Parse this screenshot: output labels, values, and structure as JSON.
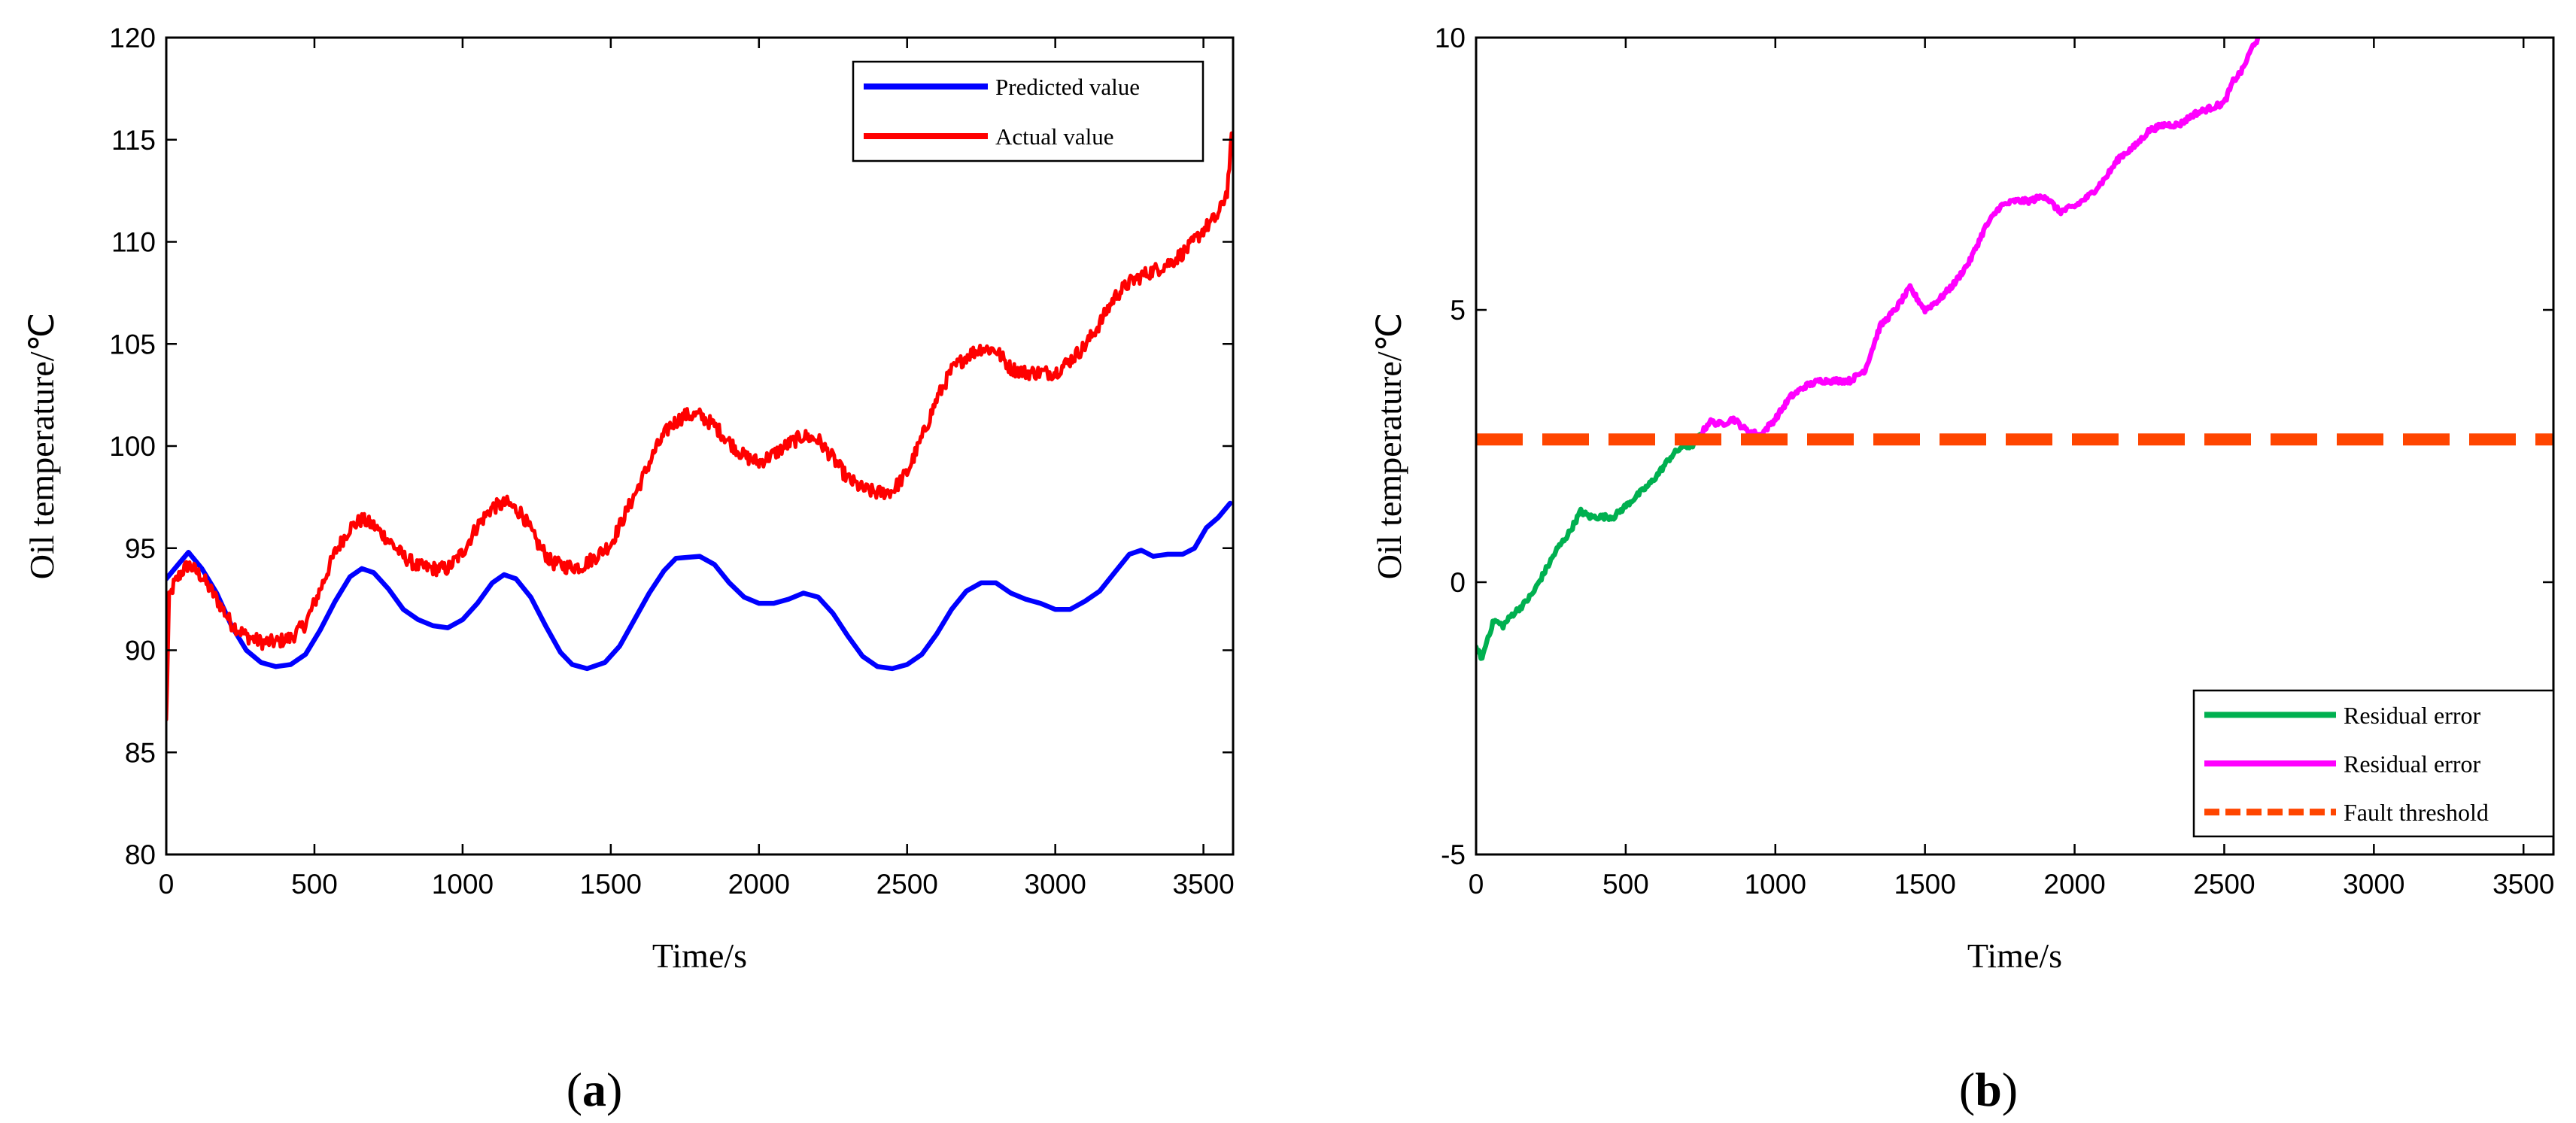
{
  "chart_data": [
    {
      "type": "line",
      "panel_label": "(a)",
      "panel_letter": "a",
      "xlabel": "Time/s",
      "ylabel": "Oil temperature/℃",
      "xlim": [
        0,
        3600
      ],
      "ylim": [
        80,
        120
      ],
      "xticks": [
        0,
        500,
        1000,
        1500,
        2000,
        2500,
        3000,
        3500
      ],
      "yticks": [
        80,
        85,
        90,
        95,
        100,
        105,
        110,
        115,
        120
      ],
      "legend_position": "top-right",
      "series": [
        {
          "name": "Predicted value",
          "color": "#0000ff",
          "noise": 0,
          "points": [
            [
              0,
              93.5
            ],
            [
              40,
              94.2
            ],
            [
              75,
              94.8
            ],
            [
              120,
              94.0
            ],
            [
              170,
              92.8
            ],
            [
              220,
              91.2
            ],
            [
              270,
              90.0
            ],
            [
              320,
              89.4
            ],
            [
              370,
              89.2
            ],
            [
              420,
              89.3
            ],
            [
              470,
              89.8
            ],
            [
              520,
              91.0
            ],
            [
              570,
              92.4
            ],
            [
              620,
              93.6
            ],
            [
              660,
              94.0
            ],
            [
              700,
              93.8
            ],
            [
              750,
              93.0
            ],
            [
              800,
              92.0
            ],
            [
              850,
              91.5
            ],
            [
              900,
              91.2
            ],
            [
              950,
              91.1
            ],
            [
              1000,
              91.5
            ],
            [
              1050,
              92.3
            ],
            [
              1100,
              93.3
            ],
            [
              1140,
              93.7
            ],
            [
              1180,
              93.5
            ],
            [
              1230,
              92.6
            ],
            [
              1280,
              91.2
            ],
            [
              1330,
              89.9
            ],
            [
              1370,
              89.3
            ],
            [
              1420,
              89.1
            ],
            [
              1480,
              89.4
            ],
            [
              1530,
              90.2
            ],
            [
              1580,
              91.5
            ],
            [
              1630,
              92.8
            ],
            [
              1680,
              93.9
            ],
            [
              1720,
              94.5
            ],
            [
              1800,
              94.6
            ],
            [
              1850,
              94.2
            ],
            [
              1900,
              93.3
            ],
            [
              1950,
              92.6
            ],
            [
              2000,
              92.3
            ],
            [
              2050,
              92.3
            ],
            [
              2100,
              92.5
            ],
            [
              2150,
              92.8
            ],
            [
              2200,
              92.6
            ],
            [
              2250,
              91.8
            ],
            [
              2300,
              90.7
            ],
            [
              2350,
              89.7
            ],
            [
              2400,
              89.2
            ],
            [
              2450,
              89.1
            ],
            [
              2500,
              89.3
            ],
            [
              2550,
              89.8
            ],
            [
              2600,
              90.8
            ],
            [
              2650,
              92.0
            ],
            [
              2700,
              92.9
            ],
            [
              2750,
              93.3
            ],
            [
              2800,
              93.3
            ],
            [
              2850,
              92.8
            ],
            [
              2900,
              92.5
            ],
            [
              2950,
              92.3
            ],
            [
              3000,
              92.0
            ],
            [
              3050,
              92.0
            ],
            [
              3100,
              92.4
            ],
            [
              3150,
              92.9
            ],
            [
              3200,
              93.8
            ],
            [
              3250,
              94.7
            ],
            [
              3290,
              94.9
            ],
            [
              3330,
              94.6
            ],
            [
              3380,
              94.7
            ],
            [
              3430,
              94.7
            ],
            [
              3470,
              95.0
            ],
            [
              3510,
              96.0
            ],
            [
              3550,
              96.5
            ],
            [
              3590,
              97.2
            ]
          ]
        },
        {
          "name": "Actual value",
          "color": "#ff0000",
          "noise": 0.35,
          "points": [
            [
              0,
              86.5
            ],
            [
              10,
              92.5
            ],
            [
              25,
              93.2
            ],
            [
              50,
              93.8
            ],
            [
              75,
              94.2
            ],
            [
              120,
              93.6
            ],
            [
              170,
              92.5
            ],
            [
              220,
              91.3
            ],
            [
              270,
              90.7
            ],
            [
              320,
              90.4
            ],
            [
              370,
              90.4
            ],
            [
              420,
              90.6
            ],
            [
              470,
              91.3
            ],
            [
              520,
              93.0
            ],
            [
              570,
              94.8
            ],
            [
              620,
              96.0
            ],
            [
              660,
              96.4
            ],
            [
              700,
              96.1
            ],
            [
              750,
              95.4
            ],
            [
              800,
              94.6
            ],
            [
              850,
              94.1
            ],
            [
              900,
              94.0
            ],
            [
              950,
              94.0
            ],
            [
              1000,
              94.8
            ],
            [
              1050,
              96.1
            ],
            [
              1100,
              97.0
            ],
            [
              1150,
              97.2
            ],
            [
              1200,
              96.7
            ],
            [
              1250,
              95.3
            ],
            [
              1300,
              94.3
            ],
            [
              1350,
              94.1
            ],
            [
              1400,
              94.1
            ],
            [
              1450,
              94.6
            ],
            [
              1500,
              95.2
            ],
            [
              1550,
              96.7
            ],
            [
              1600,
              98.2
            ],
            [
              1650,
              99.8
            ],
            [
              1700,
              101.0
            ],
            [
              1750,
              101.5
            ],
            [
              1800,
              101.5
            ],
            [
              1850,
              101.0
            ],
            [
              1900,
              100.2
            ],
            [
              1950,
              99.5
            ],
            [
              2000,
              99.2
            ],
            [
              2050,
              99.6
            ],
            [
              2100,
              100.1
            ],
            [
              2150,
              100.5
            ],
            [
              2200,
              100.3
            ],
            [
              2250,
              99.4
            ],
            [
              2300,
              98.4
            ],
            [
              2350,
              97.9
            ],
            [
              2400,
              97.7
            ],
            [
              2450,
              97.8
            ],
            [
              2500,
              98.7
            ],
            [
              2550,
              100.4
            ],
            [
              2600,
              102.3
            ],
            [
              2650,
              103.7
            ],
            [
              2700,
              104.4
            ],
            [
              2750,
              104.8
            ],
            [
              2800,
              104.7
            ],
            [
              2850,
              103.8
            ],
            [
              2900,
              103.6
            ],
            [
              2950,
              103.6
            ],
            [
              3000,
              103.6
            ],
            [
              3050,
              104.2
            ],
            [
              3100,
              104.9
            ],
            [
              3150,
              106.0
            ],
            [
              3200,
              107.3
            ],
            [
              3250,
              108.0
            ],
            [
              3300,
              108.4
            ],
            [
              3350,
              108.7
            ],
            [
              3400,
              109.1
            ],
            [
              3450,
              109.7
            ],
            [
              3500,
              110.6
            ],
            [
              3550,
              111.3
            ],
            [
              3580,
              112.5
            ],
            [
              3595,
              115.0
            ]
          ]
        }
      ]
    },
    {
      "type": "line",
      "panel_label": "(b)",
      "panel_letter": "b",
      "xlabel": "Time/s",
      "ylabel": "Oil temperature/℃",
      "xlim": [
        0,
        3600
      ],
      "ylim": [
        -5,
        10
      ],
      "xticks": [
        0,
        500,
        1000,
        1500,
        2000,
        2500,
        3000,
        3500
      ],
      "yticks": [
        -5,
        0,
        5,
        10
      ],
      "legend_position": "bottom-right",
      "series": [
        {
          "name": "Residual error",
          "color": "#00b050",
          "noise": 0.05,
          "points": [
            [
              0,
              -1.2
            ],
            [
              20,
              -1.4
            ],
            [
              40,
              -1.0
            ],
            [
              60,
              -0.7
            ],
            [
              90,
              -0.8
            ],
            [
              120,
              -0.6
            ],
            [
              160,
              -0.4
            ],
            [
              190,
              -0.2
            ],
            [
              230,
              0.2
            ],
            [
              270,
              0.6
            ],
            [
              310,
              0.9
            ],
            [
              350,
              1.3
            ],
            [
              380,
              1.2
            ],
            [
              420,
              1.2
            ],
            [
              460,
              1.2
            ],
            [
              500,
              1.4
            ],
            [
              540,
              1.6
            ],
            [
              580,
              1.8
            ],
            [
              610,
              2.0
            ],
            [
              650,
              2.3
            ],
            [
              690,
              2.5
            ],
            [
              720,
              2.5
            ],
            [
              750,
              2.7
            ]
          ]
        },
        {
          "name": "Residual error",
          "color": "#ff00ff",
          "noise": 0.05,
          "points": [
            [
              750,
              2.7
            ],
            [
              780,
              2.95
            ],
            [
              820,
              2.9
            ],
            [
              860,
              3.0
            ],
            [
              900,
              2.8
            ],
            [
              950,
              2.7
            ],
            [
              1000,
              3.0
            ],
            [
              1050,
              3.4
            ],
            [
              1100,
              3.6
            ],
            [
              1150,
              3.7
            ],
            [
              1200,
              3.7
            ],
            [
              1250,
              3.7
            ],
            [
              1300,
              3.9
            ],
            [
              1350,
              4.7
            ],
            [
              1400,
              5.0
            ],
            [
              1450,
              5.4
            ],
            [
              1500,
              5.0
            ],
            [
              1550,
              5.2
            ],
            [
              1600,
              5.5
            ],
            [
              1650,
              5.9
            ],
            [
              1700,
              6.5
            ],
            [
              1750,
              6.9
            ],
            [
              1800,
              7.0
            ],
            [
              1850,
              7.0
            ],
            [
              1900,
              7.1
            ],
            [
              1950,
              6.8
            ],
            [
              2000,
              6.9
            ],
            [
              2050,
              7.1
            ],
            [
              2100,
              7.4
            ],
            [
              2150,
              7.8
            ],
            [
              2200,
              8.0
            ],
            [
              2250,
              8.3
            ],
            [
              2300,
              8.4
            ],
            [
              2350,
              8.4
            ],
            [
              2400,
              8.6
            ],
            [
              2450,
              8.7
            ],
            [
              2500,
              8.8
            ],
            [
              2530,
              9.2
            ],
            [
              2560,
              9.4
            ],
            [
              2600,
              9.9
            ],
            [
              2620,
              10.0
            ]
          ]
        },
        {
          "name": "Fault threshold",
          "color": "#ff4500",
          "dashed": true,
          "noise": 0,
          "points": [
            [
              0,
              2.62
            ],
            [
              3600,
              2.62
            ]
          ]
        }
      ]
    }
  ]
}
